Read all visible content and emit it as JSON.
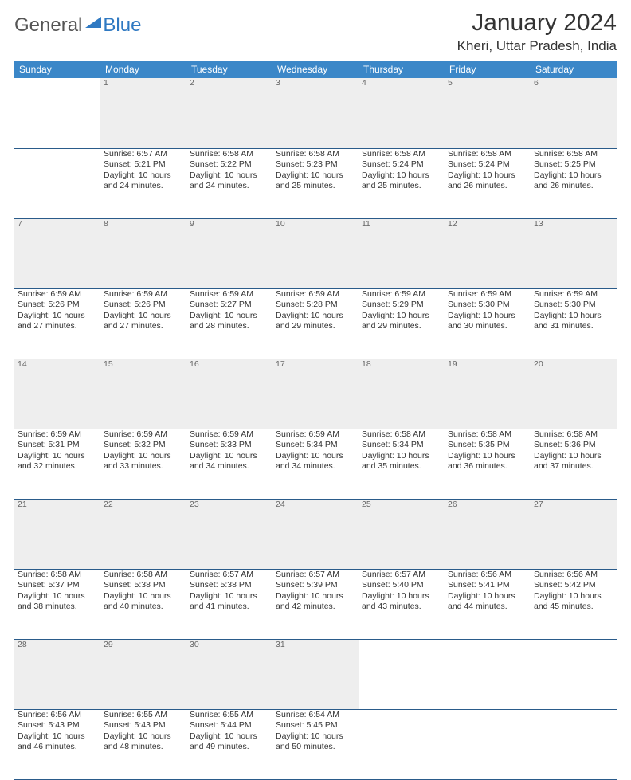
{
  "logo": {
    "word1": "General",
    "word2": "Blue",
    "triangle_color": "#2f79c2"
  },
  "title": "January 2024",
  "location": "Kheri, Uttar Pradesh, India",
  "colors": {
    "header_bg": "#3b87c8",
    "header_fg": "#ffffff",
    "daynum_bg": "#eeeeee",
    "daynum_fg": "#666666",
    "row_divider": "#2a5b8a",
    "body_text": "#333333"
  },
  "weekdays": [
    "Sunday",
    "Monday",
    "Tuesday",
    "Wednesday",
    "Thursday",
    "Friday",
    "Saturday"
  ],
  "weeks": [
    {
      "nums": [
        "",
        "1",
        "2",
        "3",
        "4",
        "5",
        "6"
      ],
      "cells": [
        null,
        {
          "sunrise": "Sunrise: 6:57 AM",
          "sunset": "Sunset: 5:21 PM",
          "day1": "Daylight: 10 hours",
          "day2": "and 24 minutes."
        },
        {
          "sunrise": "Sunrise: 6:58 AM",
          "sunset": "Sunset: 5:22 PM",
          "day1": "Daylight: 10 hours",
          "day2": "and 24 minutes."
        },
        {
          "sunrise": "Sunrise: 6:58 AM",
          "sunset": "Sunset: 5:23 PM",
          "day1": "Daylight: 10 hours",
          "day2": "and 25 minutes."
        },
        {
          "sunrise": "Sunrise: 6:58 AM",
          "sunset": "Sunset: 5:24 PM",
          "day1": "Daylight: 10 hours",
          "day2": "and 25 minutes."
        },
        {
          "sunrise": "Sunrise: 6:58 AM",
          "sunset": "Sunset: 5:24 PM",
          "day1": "Daylight: 10 hours",
          "day2": "and 26 minutes."
        },
        {
          "sunrise": "Sunrise: 6:58 AM",
          "sunset": "Sunset: 5:25 PM",
          "day1": "Daylight: 10 hours",
          "day2": "and 26 minutes."
        }
      ]
    },
    {
      "nums": [
        "7",
        "8",
        "9",
        "10",
        "11",
        "12",
        "13"
      ],
      "cells": [
        {
          "sunrise": "Sunrise: 6:59 AM",
          "sunset": "Sunset: 5:26 PM",
          "day1": "Daylight: 10 hours",
          "day2": "and 27 minutes."
        },
        {
          "sunrise": "Sunrise: 6:59 AM",
          "sunset": "Sunset: 5:26 PM",
          "day1": "Daylight: 10 hours",
          "day2": "and 27 minutes."
        },
        {
          "sunrise": "Sunrise: 6:59 AM",
          "sunset": "Sunset: 5:27 PM",
          "day1": "Daylight: 10 hours",
          "day2": "and 28 minutes."
        },
        {
          "sunrise": "Sunrise: 6:59 AM",
          "sunset": "Sunset: 5:28 PM",
          "day1": "Daylight: 10 hours",
          "day2": "and 29 minutes."
        },
        {
          "sunrise": "Sunrise: 6:59 AM",
          "sunset": "Sunset: 5:29 PM",
          "day1": "Daylight: 10 hours",
          "day2": "and 29 minutes."
        },
        {
          "sunrise": "Sunrise: 6:59 AM",
          "sunset": "Sunset: 5:30 PM",
          "day1": "Daylight: 10 hours",
          "day2": "and 30 minutes."
        },
        {
          "sunrise": "Sunrise: 6:59 AM",
          "sunset": "Sunset: 5:30 PM",
          "day1": "Daylight: 10 hours",
          "day2": "and 31 minutes."
        }
      ]
    },
    {
      "nums": [
        "14",
        "15",
        "16",
        "17",
        "18",
        "19",
        "20"
      ],
      "cells": [
        {
          "sunrise": "Sunrise: 6:59 AM",
          "sunset": "Sunset: 5:31 PM",
          "day1": "Daylight: 10 hours",
          "day2": "and 32 minutes."
        },
        {
          "sunrise": "Sunrise: 6:59 AM",
          "sunset": "Sunset: 5:32 PM",
          "day1": "Daylight: 10 hours",
          "day2": "and 33 minutes."
        },
        {
          "sunrise": "Sunrise: 6:59 AM",
          "sunset": "Sunset: 5:33 PM",
          "day1": "Daylight: 10 hours",
          "day2": "and 34 minutes."
        },
        {
          "sunrise": "Sunrise: 6:59 AM",
          "sunset": "Sunset: 5:34 PM",
          "day1": "Daylight: 10 hours",
          "day2": "and 34 minutes."
        },
        {
          "sunrise": "Sunrise: 6:58 AM",
          "sunset": "Sunset: 5:34 PM",
          "day1": "Daylight: 10 hours",
          "day2": "and 35 minutes."
        },
        {
          "sunrise": "Sunrise: 6:58 AM",
          "sunset": "Sunset: 5:35 PM",
          "day1": "Daylight: 10 hours",
          "day2": "and 36 minutes."
        },
        {
          "sunrise": "Sunrise: 6:58 AM",
          "sunset": "Sunset: 5:36 PM",
          "day1": "Daylight: 10 hours",
          "day2": "and 37 minutes."
        }
      ]
    },
    {
      "nums": [
        "21",
        "22",
        "23",
        "24",
        "25",
        "26",
        "27"
      ],
      "cells": [
        {
          "sunrise": "Sunrise: 6:58 AM",
          "sunset": "Sunset: 5:37 PM",
          "day1": "Daylight: 10 hours",
          "day2": "and 38 minutes."
        },
        {
          "sunrise": "Sunrise: 6:58 AM",
          "sunset": "Sunset: 5:38 PM",
          "day1": "Daylight: 10 hours",
          "day2": "and 40 minutes."
        },
        {
          "sunrise": "Sunrise: 6:57 AM",
          "sunset": "Sunset: 5:38 PM",
          "day1": "Daylight: 10 hours",
          "day2": "and 41 minutes."
        },
        {
          "sunrise": "Sunrise: 6:57 AM",
          "sunset": "Sunset: 5:39 PM",
          "day1": "Daylight: 10 hours",
          "day2": "and 42 minutes."
        },
        {
          "sunrise": "Sunrise: 6:57 AM",
          "sunset": "Sunset: 5:40 PM",
          "day1": "Daylight: 10 hours",
          "day2": "and 43 minutes."
        },
        {
          "sunrise": "Sunrise: 6:56 AM",
          "sunset": "Sunset: 5:41 PM",
          "day1": "Daylight: 10 hours",
          "day2": "and 44 minutes."
        },
        {
          "sunrise": "Sunrise: 6:56 AM",
          "sunset": "Sunset: 5:42 PM",
          "day1": "Daylight: 10 hours",
          "day2": "and 45 minutes."
        }
      ]
    },
    {
      "nums": [
        "28",
        "29",
        "30",
        "31",
        "",
        "",
        ""
      ],
      "cells": [
        {
          "sunrise": "Sunrise: 6:56 AM",
          "sunset": "Sunset: 5:43 PM",
          "day1": "Daylight: 10 hours",
          "day2": "and 46 minutes."
        },
        {
          "sunrise": "Sunrise: 6:55 AM",
          "sunset": "Sunset: 5:43 PM",
          "day1": "Daylight: 10 hours",
          "day2": "and 48 minutes."
        },
        {
          "sunrise": "Sunrise: 6:55 AM",
          "sunset": "Sunset: 5:44 PM",
          "day1": "Daylight: 10 hours",
          "day2": "and 49 minutes."
        },
        {
          "sunrise": "Sunrise: 6:54 AM",
          "sunset": "Sunset: 5:45 PM",
          "day1": "Daylight: 10 hours",
          "day2": "and 50 minutes."
        },
        null,
        null,
        null
      ]
    }
  ]
}
